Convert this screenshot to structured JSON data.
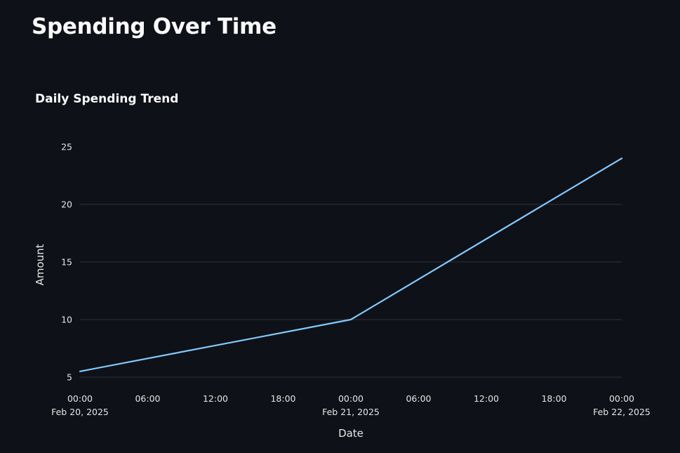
{
  "page": {
    "title": "Spending Over Time"
  },
  "chart_data": {
    "type": "line",
    "title": "Daily Spending Trend",
    "xlabel": "Date",
    "ylabel": "Amount",
    "x": [
      "2025-02-20T00:00",
      "2025-02-21T00:00",
      "2025-02-22T00:00"
    ],
    "series": [
      {
        "values": [
          5.5,
          10,
          24
        ],
        "color": "#83c9ff"
      }
    ],
    "xlim": [
      "2025-02-20T00:00",
      "2025-02-22T00:00"
    ],
    "ylim": [
      5,
      25
    ],
    "y_ticks": [
      5,
      10,
      15,
      20,
      25
    ],
    "x_ticks": [
      {
        "at": "2025-02-20T00:00",
        "time": "00:00",
        "date": "Feb 20, 2025"
      },
      {
        "at": "2025-02-20T06:00",
        "time": "06:00",
        "date": ""
      },
      {
        "at": "2025-02-20T12:00",
        "time": "12:00",
        "date": ""
      },
      {
        "at": "2025-02-20T18:00",
        "time": "18:00",
        "date": ""
      },
      {
        "at": "2025-02-21T00:00",
        "time": "00:00",
        "date": "Feb 21, 2025"
      },
      {
        "at": "2025-02-21T06:00",
        "time": "06:00",
        "date": ""
      },
      {
        "at": "2025-02-21T12:00",
        "time": "12:00",
        "date": ""
      },
      {
        "at": "2025-02-21T18:00",
        "time": "18:00",
        "date": ""
      },
      {
        "at": "2025-02-22T00:00",
        "time": "00:00",
        "date": "Feb 22, 2025"
      }
    ],
    "grid": "horizontal",
    "colors": {
      "background": "#0e1117",
      "grid": "#3a3d45",
      "text": "#fafafa"
    }
  }
}
